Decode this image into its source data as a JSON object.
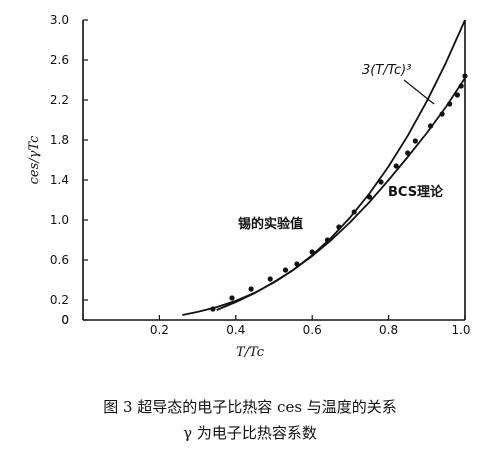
{
  "chart_data": {
    "type": "line",
    "xlabel": "T/Tc",
    "ylabel": "ces/γTc",
    "xlim": [
      0,
      1.0
    ],
    "ylim": [
      0,
      3.0
    ],
    "x_ticks": [
      "0",
      "0.2",
      "0.4",
      "0.6",
      "0.8",
      "1.0"
    ],
    "y_ticks": [
      "0",
      "0.2",
      "0.6",
      "1.0",
      "1.4",
      "1.8",
      "2.2",
      "2.6",
      "3.0"
    ],
    "y_tick_values": [
      0,
      0.2,
      0.6,
      1.0,
      1.4,
      1.8,
      2.2,
      2.6,
      3.0
    ],
    "x_tick_values": [
      0,
      0.2,
      0.4,
      0.6,
      0.8,
      1.0
    ],
    "grid": false,
    "series": [
      {
        "name": "3(T/Tc)³",
        "style": "line",
        "x": [
          0.26,
          0.3,
          0.35,
          0.4,
          0.45,
          0.5,
          0.55,
          0.6,
          0.65,
          0.7,
          0.75,
          0.8,
          0.85,
          0.9,
          0.95,
          1.0
        ],
        "y": [
          0.05,
          0.081,
          0.129,
          0.192,
          0.273,
          0.375,
          0.499,
          0.648,
          0.824,
          1.029,
          1.266,
          1.536,
          1.842,
          2.187,
          2.572,
          3.0
        ]
      },
      {
        "name": "BCS理论",
        "style": "line",
        "x": [
          0.35,
          0.4,
          0.45,
          0.5,
          0.55,
          0.6,
          0.65,
          0.7,
          0.75,
          0.8,
          0.85,
          0.9,
          0.95,
          1.0
        ],
        "y": [
          0.1,
          0.18,
          0.27,
          0.38,
          0.5,
          0.64,
          0.8,
          0.98,
          1.18,
          1.4,
          1.63,
          1.87,
          2.13,
          2.42
        ]
      },
      {
        "name": "锡的实验值",
        "style": "points",
        "x": [
          0.34,
          0.39,
          0.44,
          0.49,
          0.53,
          0.56,
          0.6,
          0.64,
          0.67,
          0.71,
          0.75,
          0.78,
          0.82,
          0.85,
          0.87,
          0.91,
          0.94,
          0.96,
          0.98,
          0.99,
          1.0
        ],
        "y": [
          0.11,
          0.22,
          0.31,
          0.41,
          0.5,
          0.56,
          0.68,
          0.8,
          0.93,
          1.08,
          1.23,
          1.38,
          1.54,
          1.67,
          1.79,
          1.94,
          2.06,
          2.16,
          2.25,
          2.34,
          2.44
        ]
      }
    ],
    "annotations": {
      "cubic_label": "3(T/Tc)³",
      "bcs_label": "BCS理论",
      "experiment_label": "锡的实验值"
    }
  },
  "caption": {
    "line1": "图 3   超导态的电子比热容 ces 与温度的关系",
    "line2": "γ 为电子比热容系数"
  }
}
